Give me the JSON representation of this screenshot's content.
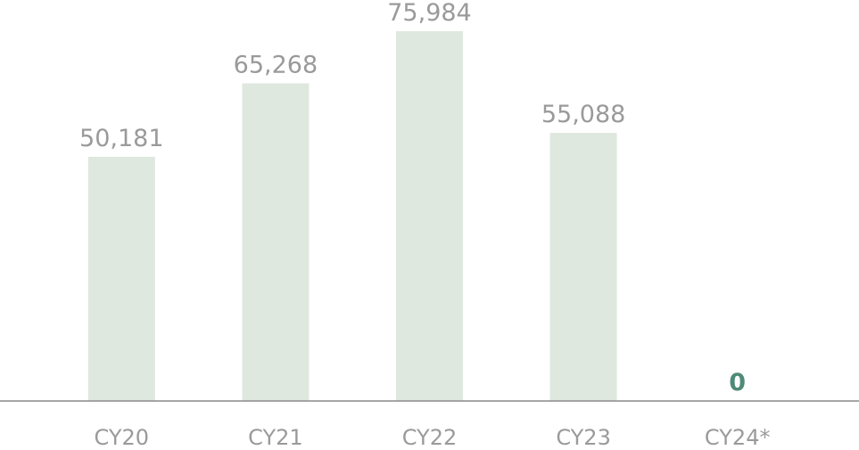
{
  "chart_data": {
    "type": "bar",
    "categories": [
      "CY20",
      "CY21",
      "CY22",
      "CY23",
      "CY24*"
    ],
    "values": [
      50181,
      65268,
      75984,
      55088,
      0
    ],
    "value_labels": [
      "50,181",
      "65,268",
      "75,984",
      "55,088",
      "0"
    ],
    "value_label_colors": [
      "#9a9a9a",
      "#9a9a9a",
      "#9a9a9a",
      "#9a9a9a",
      "#4f8a78"
    ],
    "value_label_bold": [
      false,
      false,
      false,
      false,
      true
    ],
    "color": "#dfe8df"
  }
}
